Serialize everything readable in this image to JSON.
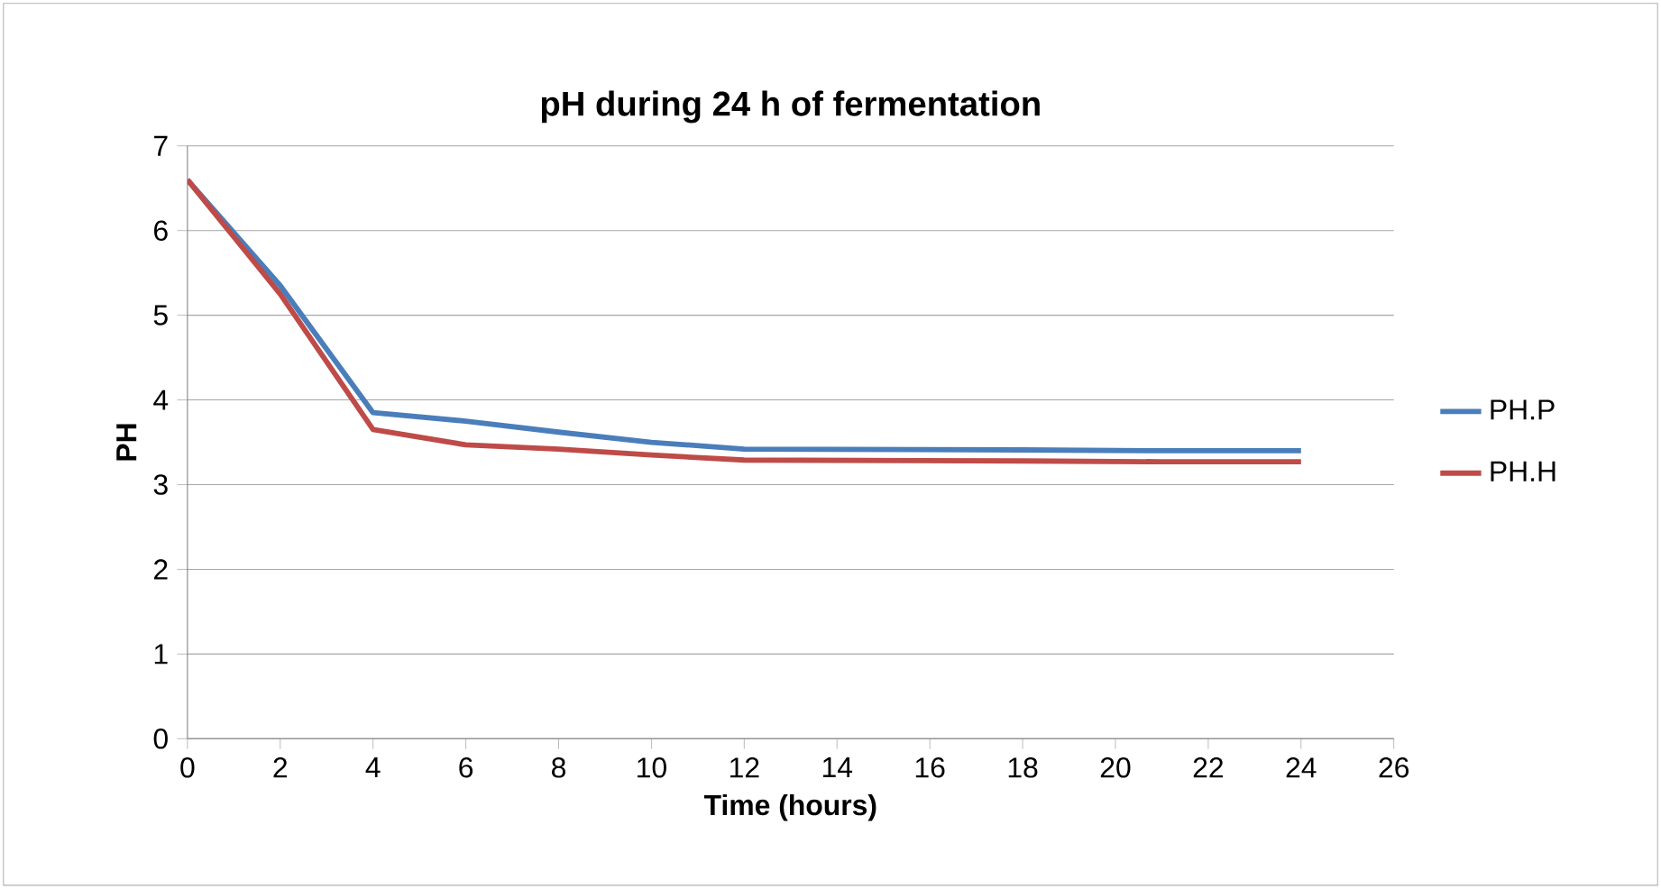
{
  "chart_data": {
    "type": "line",
    "title": "pH during 24 h of fermentation",
    "xlabel": "Time (hours)",
    "ylabel": "PH",
    "x": [
      0,
      2,
      4,
      6,
      8,
      10,
      12,
      18,
      21,
      24
    ],
    "series": [
      {
        "name": "PH.P",
        "color": "#4a7ebb",
        "values": [
          6.6,
          5.35,
          3.85,
          3.75,
          3.62,
          3.5,
          3.42,
          3.41,
          3.4,
          3.4
        ]
      },
      {
        "name": "PH.H",
        "color": "#be4b48",
        "values": [
          6.6,
          5.25,
          3.65,
          3.47,
          3.42,
          3.35,
          3.29,
          3.28,
          3.27,
          3.27
        ]
      }
    ],
    "xlim": [
      0,
      26
    ],
    "xticks": [
      0,
      2,
      4,
      6,
      8,
      10,
      12,
      14,
      16,
      18,
      20,
      22,
      24,
      26
    ],
    "ylim": [
      0,
      7
    ],
    "yticks": [
      0,
      1,
      2,
      3,
      4,
      5,
      6,
      7
    ],
    "grid": "y",
    "legend": "right",
    "marker": "none",
    "line_style": "solid"
  }
}
